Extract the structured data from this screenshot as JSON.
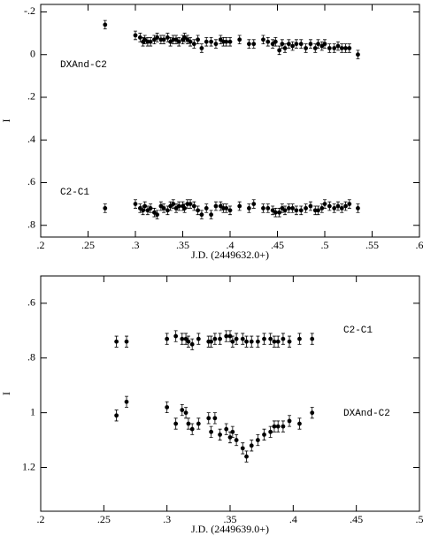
{
  "chart_data": [
    {
      "type": "scatter",
      "x_label": "J.D. (2449632.0+)",
      "y_label": "I",
      "y_inverted": true,
      "xlim": [
        0.2,
        0.6
      ],
      "ylim": [
        -0.235,
        0.855
      ],
      "xticks": [
        {
          "value": 0.2,
          "label": ".2"
        },
        {
          "value": 0.25,
          "label": ".25"
        },
        {
          "value": 0.3,
          "label": ".3"
        },
        {
          "value": 0.35,
          "label": ".35"
        },
        {
          "value": 0.4,
          "label": ".4"
        },
        {
          "value": 0.45,
          "label": ".45"
        },
        {
          "value": 0.5,
          "label": ".5"
        },
        {
          "value": 0.55,
          "label": ".55"
        },
        {
          "value": 0.6,
          "label": ".6"
        }
      ],
      "yticks": [
        {
          "value": -0.2,
          "label": "-.2"
        },
        0,
        {
          "value": 0.2,
          "label": ".2"
        },
        {
          "value": 0.4,
          "label": ".4"
        },
        {
          "value": 0.6,
          "label": ".6"
        },
        {
          "value": 0.8,
          "label": ".8"
        }
      ],
      "x": [
        0.268,
        0.3,
        0.305,
        0.308,
        0.31,
        0.313,
        0.316,
        0.32,
        0.323,
        0.327,
        0.33,
        0.334,
        0.337,
        0.34,
        0.343,
        0.346,
        0.35,
        0.352,
        0.355,
        0.358,
        0.362,
        0.366,
        0.37,
        0.375,
        0.38,
        0.385,
        0.39,
        0.393,
        0.396,
        0.4,
        0.41,
        0.42,
        0.425,
        0.435,
        0.44,
        0.445,
        0.448,
        0.452,
        0.455,
        0.458,
        0.462,
        0.466,
        0.47,
        0.475,
        0.48,
        0.485,
        0.49,
        0.493,
        0.497,
        0.5,
        0.505,
        0.51,
        0.514,
        0.518,
        0.522,
        0.526,
        0.535
      ],
      "series": [
        {
          "name": "DXAnd-C2",
          "color": "#000000",
          "error": 0.02,
          "values": [
            -0.14,
            -0.09,
            -0.08,
            -0.06,
            -0.07,
            -0.06,
            -0.06,
            -0.07,
            -0.08,
            -0.07,
            -0.07,
            -0.08,
            -0.06,
            -0.07,
            -0.07,
            -0.06,
            -0.07,
            -0.08,
            -0.07,
            -0.06,
            -0.05,
            -0.07,
            -0.03,
            -0.06,
            -0.06,
            -0.05,
            -0.07,
            -0.06,
            -0.06,
            -0.06,
            -0.07,
            -0.05,
            -0.05,
            -0.07,
            -0.06,
            -0.05,
            -0.06,
            -0.02,
            -0.05,
            -0.03,
            -0.05,
            -0.04,
            -0.05,
            -0.05,
            -0.03,
            -0.05,
            -0.03,
            -0.05,
            -0.04,
            -0.05,
            -0.03,
            -0.03,
            -0.04,
            -0.03,
            -0.03,
            -0.03,
            0.0
          ]
        },
        {
          "name": "C2-C1",
          "color": "#000000",
          "error": 0.02,
          "values": [
            0.72,
            0.7,
            0.72,
            0.73,
            0.71,
            0.73,
            0.72,
            0.74,
            0.75,
            0.71,
            0.72,
            0.73,
            0.71,
            0.7,
            0.72,
            0.71,
            0.71,
            0.72,
            0.7,
            0.7,
            0.71,
            0.73,
            0.75,
            0.72,
            0.75,
            0.71,
            0.71,
            0.72,
            0.72,
            0.73,
            0.71,
            0.72,
            0.7,
            0.72,
            0.72,
            0.73,
            0.74,
            0.74,
            0.72,
            0.73,
            0.72,
            0.72,
            0.73,
            0.73,
            0.72,
            0.71,
            0.73,
            0.73,
            0.72,
            0.7,
            0.71,
            0.72,
            0.71,
            0.72,
            0.71,
            0.7,
            0.72
          ]
        }
      ]
    },
    {
      "type": "scatter",
      "x_label": "J.D. (2449639.0+)",
      "y_label": "I",
      "y_inverted": true,
      "xlim": [
        0.2,
        0.5
      ],
      "ylim": [
        0.5,
        1.36
      ],
      "xticks": [
        {
          "value": 0.2,
          "label": ".2"
        },
        {
          "value": 0.25,
          "label": ".25"
        },
        {
          "value": 0.3,
          "label": ".3"
        },
        {
          "value": 0.35,
          "label": ".35"
        },
        {
          "value": 0.4,
          "label": ".4"
        },
        {
          "value": 0.45,
          "label": ".45"
        },
        {
          "value": 0.5,
          "label": ".5"
        }
      ],
      "yticks": [
        {
          "value": 0.6,
          "label": ".6"
        },
        {
          "value": 0.8,
          "label": ".8"
        },
        1,
        1.2
      ],
      "x": [
        0.26,
        0.268,
        0.3,
        0.307,
        0.312,
        0.315,
        0.317,
        0.32,
        0.325,
        0.333,
        0.335,
        0.338,
        0.342,
        0.347,
        0.35,
        0.352,
        0.355,
        0.36,
        0.363,
        0.367,
        0.372,
        0.377,
        0.382,
        0.385,
        0.388,
        0.392,
        0.397,
        0.405,
        0.415
      ],
      "series": [
        {
          "name": "C2-C1",
          "color": "#000000",
          "error": 0.02,
          "values": [
            0.74,
            0.74,
            0.73,
            0.72,
            0.73,
            0.73,
            0.74,
            0.75,
            0.73,
            0.74,
            0.74,
            0.73,
            0.73,
            0.72,
            0.72,
            0.74,
            0.73,
            0.73,
            0.74,
            0.74,
            0.74,
            0.73,
            0.73,
            0.74,
            0.74,
            0.73,
            0.74,
            0.73,
            0.73
          ]
        },
        {
          "name": "DXAnd-C2",
          "color": "#000000",
          "error": 0.02,
          "values": [
            1.01,
            0.96,
            0.98,
            1.04,
            0.99,
            1.0,
            1.04,
            1.06,
            1.04,
            1.02,
            1.07,
            1.02,
            1.08,
            1.06,
            1.09,
            1.07,
            1.1,
            1.13,
            1.16,
            1.12,
            1.1,
            1.08,
            1.07,
            1.05,
            1.05,
            1.05,
            1.03,
            1.04,
            1.0
          ]
        }
      ]
    }
  ]
}
